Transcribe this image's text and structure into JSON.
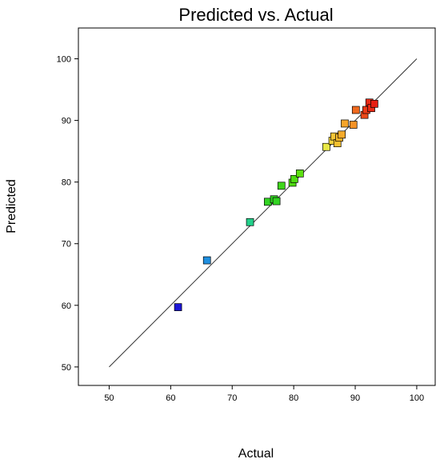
{
  "chart_data": {
    "type": "scatter",
    "title": "Predicted vs. Actual",
    "xlabel": "Actual",
    "ylabel": "Predicted",
    "xlim": [
      45,
      103
    ],
    "ylim": [
      47,
      105
    ],
    "xticks": [
      50,
      60,
      70,
      80,
      90,
      100
    ],
    "yticks": [
      50,
      60,
      70,
      80,
      90,
      100
    ],
    "grid": false,
    "reference_line": {
      "from": [
        50,
        50
      ],
      "to": [
        100,
        100
      ]
    },
    "colors": {
      "low": "#1a1adb",
      "mid": "#33dd00",
      "high": "#ee1111"
    },
    "points": [
      {
        "x": 61.2,
        "y": 59.7,
        "color": "#1c16d6"
      },
      {
        "x": 65.9,
        "y": 67.3,
        "color": "#1f8fe0"
      },
      {
        "x": 72.9,
        "y": 73.5,
        "color": "#22d08a"
      },
      {
        "x": 75.8,
        "y": 76.8,
        "color": "#33d423"
      },
      {
        "x": 76.8,
        "y": 77.2,
        "color": "#33d423"
      },
      {
        "x": 77.2,
        "y": 76.9,
        "color": "#33d423"
      },
      {
        "x": 78.0,
        "y": 79.4,
        "color": "#3fd61a"
      },
      {
        "x": 79.8,
        "y": 79.9,
        "color": "#4fdb13"
      },
      {
        "x": 80.1,
        "y": 80.5,
        "color": "#4fdb13"
      },
      {
        "x": 81.0,
        "y": 81.4,
        "color": "#5cdf10"
      },
      {
        "x": 85.3,
        "y": 85.7,
        "color": "#e8e845"
      },
      {
        "x": 86.3,
        "y": 86.7,
        "color": "#f0d23c"
      },
      {
        "x": 86.6,
        "y": 87.4,
        "color": "#f4c638"
      },
      {
        "x": 87.1,
        "y": 86.3,
        "color": "#f4c030"
      },
      {
        "x": 87.4,
        "y": 87.2,
        "color": "#f5b82c"
      },
      {
        "x": 87.8,
        "y": 87.7,
        "color": "#f6ab2a"
      },
      {
        "x": 88.3,
        "y": 89.5,
        "color": "#f6a52a"
      },
      {
        "x": 89.7,
        "y": 89.3,
        "color": "#f59225"
      },
      {
        "x": 90.1,
        "y": 91.7,
        "color": "#f06a1e"
      },
      {
        "x": 91.5,
        "y": 90.9,
        "color": "#ec4a1a"
      },
      {
        "x": 91.8,
        "y": 91.7,
        "color": "#eb3a17"
      },
      {
        "x": 92.3,
        "y": 92.9,
        "color": "#e92a15"
      },
      {
        "x": 92.6,
        "y": 92.0,
        "color": "#e82a15"
      },
      {
        "x": 93.1,
        "y": 92.7,
        "color": "#e61f12"
      }
    ]
  }
}
